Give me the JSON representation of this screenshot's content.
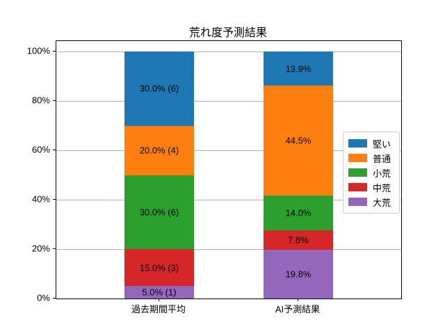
{
  "chart_data": {
    "type": "bar",
    "stacked": true,
    "orientation": "vertical",
    "title": "荒れ度予測結果",
    "categories": [
      "過去期間平均",
      "AI予測結果"
    ],
    "series": [
      {
        "name": "堅い",
        "color": "#1f77b4",
        "values": [
          30.0,
          13.9
        ],
        "labels": [
          "30.0% (6)",
          "13.9%"
        ]
      },
      {
        "name": "普通",
        "color": "#ff7f0e",
        "values": [
          20.0,
          44.5
        ],
        "labels": [
          "20.0% (4)",
          "44.5%"
        ]
      },
      {
        "name": "小荒",
        "color": "#2ca02c",
        "values": [
          30.0,
          14.0
        ],
        "labels": [
          "30.0% (6)",
          "14.0%"
        ]
      },
      {
        "name": "中荒",
        "color": "#d62728",
        "values": [
          15.0,
          7.8
        ],
        "labels": [
          "15.0% (3)",
          "7.8%"
        ]
      },
      {
        "name": "大荒",
        "color": "#9467bd",
        "values": [
          5.0,
          19.8
        ],
        "labels": [
          "5.0% (1)",
          "19.8%"
        ]
      }
    ],
    "stack_order_bottom_to_top": [
      "大荒",
      "中荒",
      "小荒",
      "普通",
      "堅い"
    ],
    "ytick_values": [
      0,
      20,
      40,
      60,
      80,
      100
    ],
    "ytick_labels": [
      "0%",
      "20%",
      "40%",
      "60%",
      "80%",
      "100%"
    ],
    "ylim": [
      0,
      104.2
    ],
    "grid": true,
    "grid_color": "#b0b0b0",
    "legend_position": "center-right"
  }
}
